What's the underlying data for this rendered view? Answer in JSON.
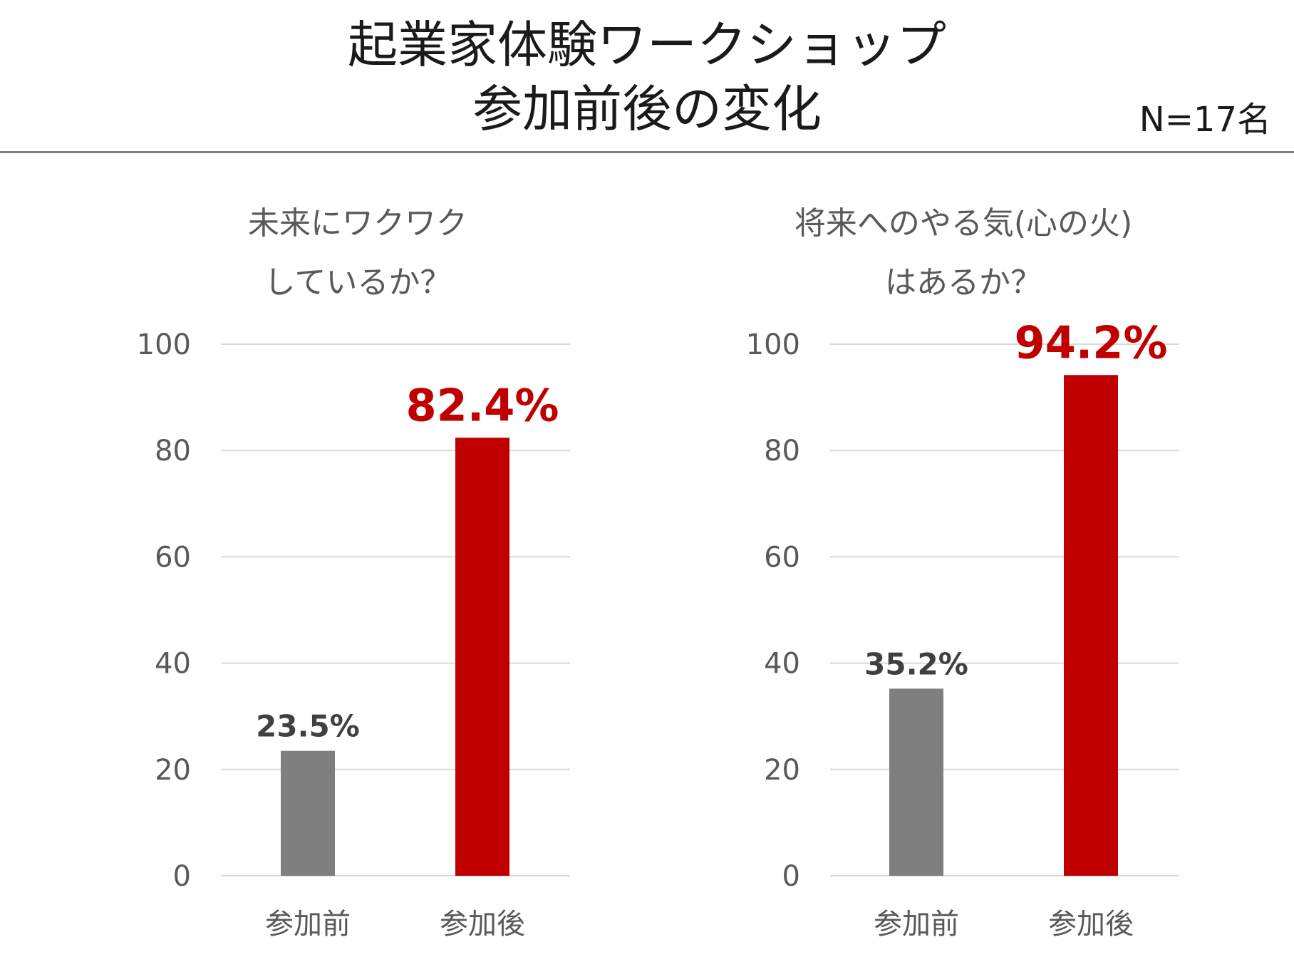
{
  "header": {
    "title_line1": "起業家体験ワークショップ",
    "title_line2": "参加前後の変化",
    "sample_size": "N=17名"
  },
  "colors": {
    "before": "#7f7f7f",
    "after": "#c00000",
    "before_label": "#404040",
    "after_label": "#c00000",
    "grid": "#d9d9d9"
  },
  "chart_data": [
    {
      "type": "bar",
      "title": [
        "未来にワクワク",
        "しているか？"
      ],
      "categories": [
        "参加前",
        "参加後"
      ],
      "values": [
        23.5,
        82.4
      ],
      "data_labels": [
        "23.5%",
        "82.4%"
      ],
      "yticks": [
        0,
        20,
        40,
        60,
        80,
        100
      ],
      "ylim": [
        0,
        100
      ],
      "xlabel": "",
      "ylabel": "",
      "grid": true
    },
    {
      "type": "bar",
      "title": [
        "将来へのやる気(心の火)",
        "はあるか？"
      ],
      "categories": [
        "参加前",
        "参加後"
      ],
      "values": [
        35.2,
        94.2
      ],
      "data_labels": [
        "35.2%",
        "94.2%"
      ],
      "yticks": [
        0,
        20,
        40,
        60,
        80,
        100
      ],
      "ylim": [
        0,
        100
      ],
      "xlabel": "",
      "ylabel": "",
      "grid": true
    }
  ]
}
